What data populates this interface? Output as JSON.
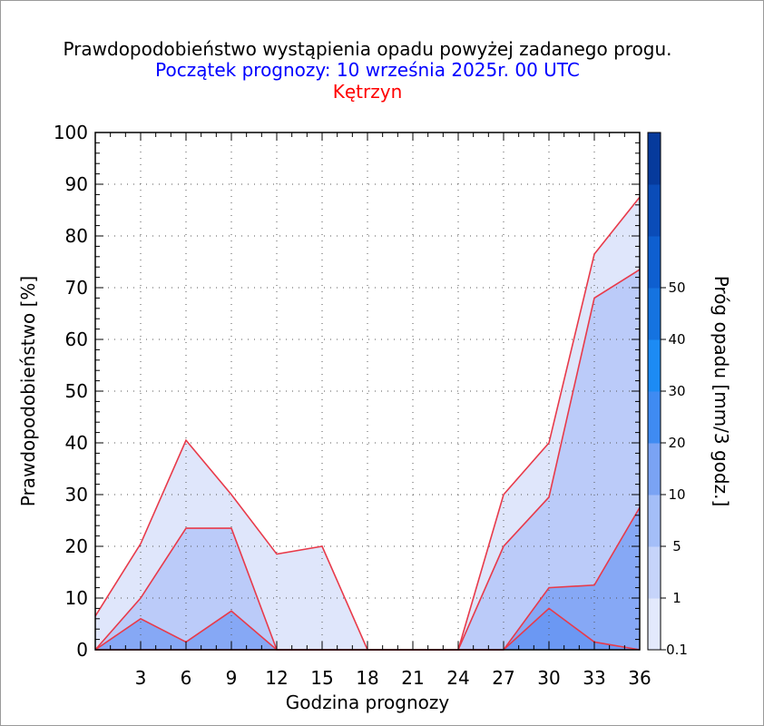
{
  "chart_data": {
    "type": "area",
    "title": "Prawdopodobieństwo wystąpienia opadu powyżej zadanego progu.",
    "subtitle": "Początek prognozy: 10 września 2025r. 00 UTC",
    "location": "Kętrzyn",
    "xlabel": "Godzina prognozy",
    "ylabel": "Prawdopodobieństwo [%]",
    "colorbar_label": "Próg opadu [mm/3 godz.]",
    "xlim": [
      0,
      36
    ],
    "ylim": [
      0,
      100
    ],
    "x_ticks": [
      3,
      6,
      9,
      12,
      15,
      18,
      21,
      24,
      27,
      30,
      33,
      36
    ],
    "y_ticks": [
      0,
      10,
      20,
      30,
      40,
      50,
      60,
      70,
      80,
      90,
      100
    ],
    "x": [
      0,
      3,
      6,
      9,
      12,
      15,
      18,
      21,
      24,
      27,
      30,
      33,
      36
    ],
    "series": [
      {
        "name": "0.1",
        "color": "#dfe6fb",
        "values": [
          6.5,
          20.5,
          40.5,
          30,
          18.5,
          20,
          0,
          0,
          0,
          30,
          40,
          76.5,
          87.5
        ]
      },
      {
        "name": "1",
        "color": "#bbcbf9",
        "values": [
          0,
          10,
          23.5,
          23.5,
          0,
          0,
          0,
          0,
          0,
          20,
          29.5,
          68,
          73.5
        ]
      },
      {
        "name": "5",
        "color": "#86a8f5",
        "values": [
          0,
          6,
          1.5,
          7.5,
          0,
          0,
          0,
          0,
          0,
          0,
          12,
          12.5,
          27.5
        ]
      },
      {
        "name": "10",
        "color": "#6b98f3",
        "values": [
          0,
          0,
          0,
          0,
          0,
          0,
          0,
          0,
          0,
          0,
          8,
          1.5,
          0
        ]
      }
    ],
    "colorbar": {
      "labels": [
        "0.1",
        "1",
        "5",
        "10",
        "20",
        "30",
        "40",
        "50"
      ],
      "colors": [
        "#e3e9fc",
        "#c6d4fa",
        "#a4bef8",
        "#7aa3f4",
        "#3f8bf2",
        "#1c8bf4",
        "#1573e0",
        "#0e5fd0",
        "#0a4cb8",
        "#063a9c"
      ]
    },
    "grid": "dotted"
  }
}
